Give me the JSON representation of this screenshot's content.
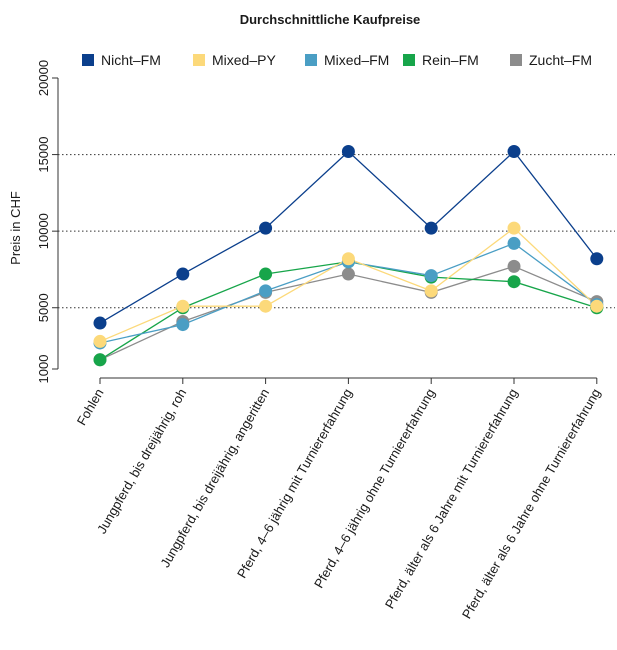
{
  "chart_data": {
    "type": "line",
    "title": "Durchschnittliche Kaufpreise",
    "xlabel": "",
    "ylabel": "Preis in CHF",
    "ylim": [
      1000,
      20000
    ],
    "yticks": [
      1000,
      5000,
      10000,
      15000,
      20000
    ],
    "grid_lines_at": [
      5000,
      10000,
      15000
    ],
    "legend_position": "top",
    "categories": [
      "Fohlen",
      "Jungpferd, bis dreijährig, roh",
      "Jungpferd, bis dreijährig, angeritten",
      "Pferd, 4–6 jährig mit Turniererfahrung",
      "Pferd, 4–6 jährig ohne Turniererfahrung",
      "Pferd, älter als 6 Jahre mit Turniererfahrung",
      "Pferd, älter als 6 Jahre ohne Turniererfahrung"
    ],
    "series": [
      {
        "name": "Nicht–FM",
        "color": "#0b3f8c",
        "values": [
          4000,
          7200,
          10200,
          15200,
          10200,
          15200,
          8200
        ]
      },
      {
        "name": "Mixed–PY",
        "color": "#fcd97a",
        "values": [
          2800,
          5100,
          5100,
          8200,
          6100,
          10200,
          5100
        ]
      },
      {
        "name": "Mixed–FM",
        "color": "#4a9ec4",
        "values": [
          2700,
          3900,
          6100,
          8000,
          7100,
          9200,
          5200
        ]
      },
      {
        "name": "Rein–FM",
        "color": "#17a54a",
        "values": [
          1600,
          5000,
          7200,
          8000,
          7000,
          6700,
          5000
        ]
      },
      {
        "name": "Zucht–FM",
        "color": "#8c8c8c",
        "values": [
          1600,
          4100,
          6000,
          7200,
          6000,
          7700,
          5400
        ]
      }
    ]
  }
}
